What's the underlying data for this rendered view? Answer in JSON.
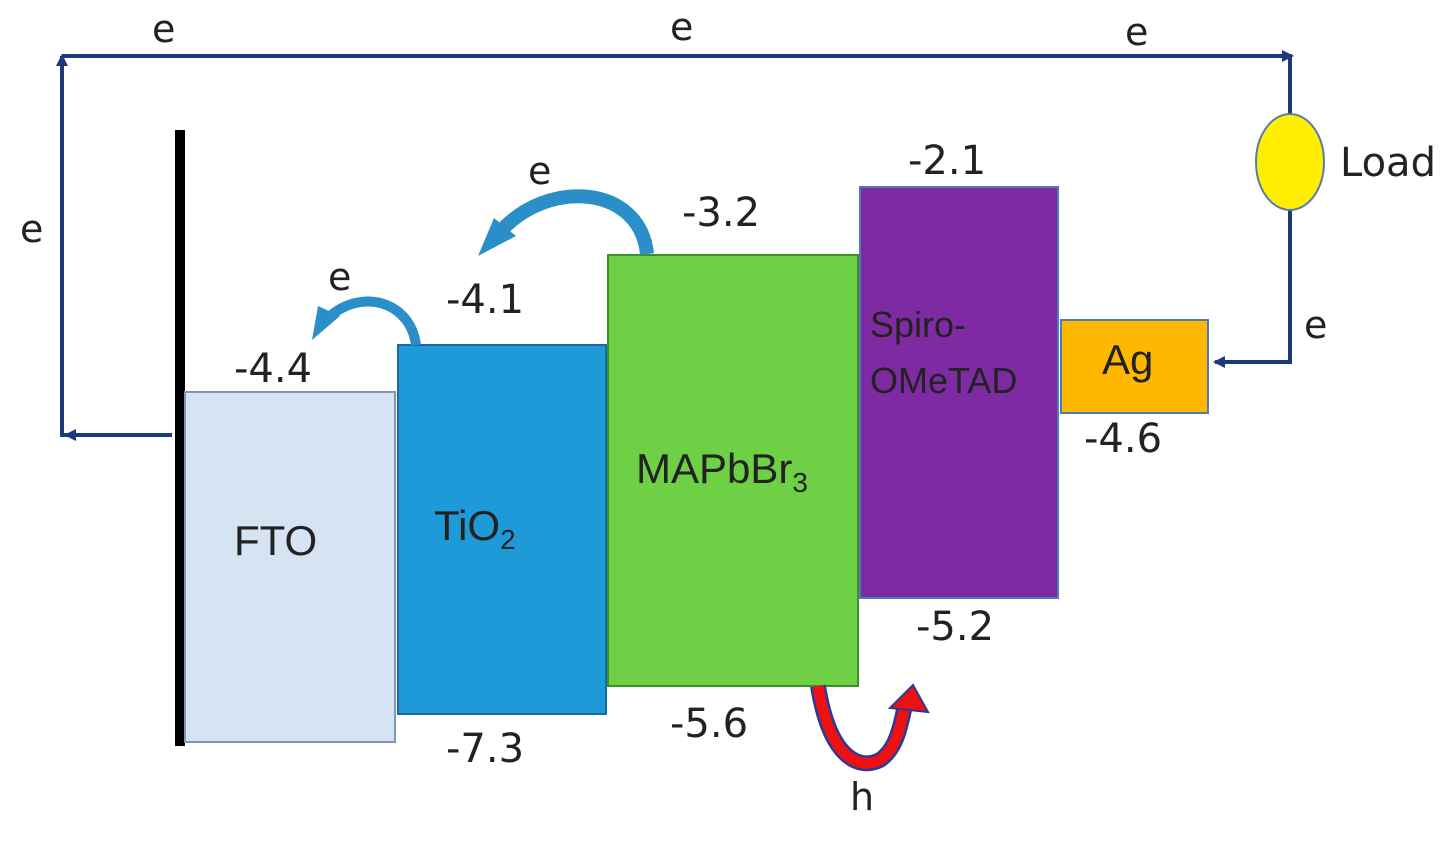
{
  "colors": {
    "wire": "#1a3a7a",
    "electrode": "#000000",
    "fto": "#d6e3f3",
    "tio2": "#1f9ad8",
    "mapbbr3": "#6dd045",
    "spiro": "#7d2aa3",
    "ag": "#ffb800",
    "load": "#ffee00",
    "electron_arrow": "#2a8fc8",
    "hole_arrow": "#ee1111"
  },
  "circuit": {
    "top_left_e": "e",
    "top_mid_e": "e",
    "top_right_e": "e",
    "left_e": "e",
    "right_e": "e",
    "load_label": "Load"
  },
  "layers": [
    {
      "id": "fto",
      "name": "FTO",
      "top_level": "-4.4",
      "bottom_level": ""
    },
    {
      "id": "tio2",
      "name": "TiO",
      "name_sub": "2",
      "top_level": "-4.1",
      "bottom_level": "-7.3"
    },
    {
      "id": "mapbbr3",
      "name": "MAPbBr",
      "name_sub": "3",
      "top_level": "-3.2",
      "bottom_level": "-5.6"
    },
    {
      "id": "spiro",
      "name_line1": "Spiro-",
      "name_line2": "OMeTAD",
      "top_level": "-2.1",
      "bottom_level": "-5.2"
    },
    {
      "id": "ag",
      "name": "Ag",
      "top_level": "",
      "bottom_level": "-4.6"
    }
  ],
  "transfers": {
    "electron_tio2_to_fto": "e",
    "electron_mapbbr3_to_tio2": "e",
    "hole_label": "h"
  }
}
